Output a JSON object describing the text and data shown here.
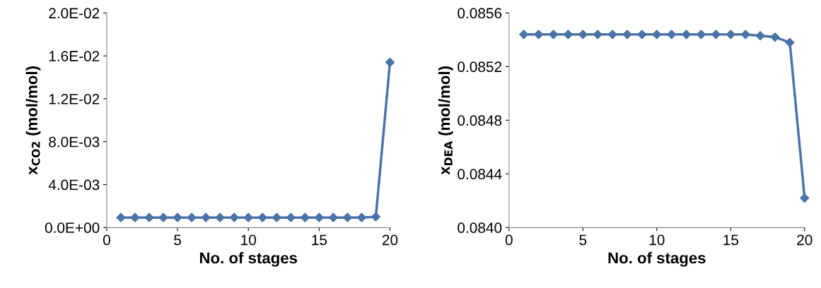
{
  "chart_data": [
    {
      "type": "line",
      "xlabel": "No. of stages",
      "ylabel": "x$_{CO2}$ (mol/mol)",
      "marker": "diamond",
      "line_style": "solid",
      "grid": false,
      "x": [
        1,
        2,
        3,
        4,
        5,
        6,
        7,
        8,
        9,
        10,
        11,
        12,
        13,
        14,
        15,
        16,
        17,
        18,
        19,
        20
      ],
      "series": [
        {
          "color": "#4a73a8",
          "values": [
            0.00093,
            0.00093,
            0.00093,
            0.00093,
            0.00093,
            0.00093,
            0.00093,
            0.00093,
            0.00093,
            0.00093,
            0.00093,
            0.00093,
            0.00093,
            0.00093,
            0.00093,
            0.00093,
            0.00093,
            0.00093,
            0.001,
            0.0154
          ]
        }
      ],
      "xlim": [
        0,
        20
      ],
      "xticks": [
        0,
        5,
        10,
        15,
        20
      ],
      "ylim": [
        0,
        0.02
      ],
      "yticks": [
        {
          "value": 0,
          "label": "0.0E+00"
        },
        {
          "value": 0.004,
          "label": "4.0E-03"
        },
        {
          "value": 0.008,
          "label": "8.0E-03"
        },
        {
          "value": 0.012,
          "label": "1.2E-02"
        },
        {
          "value": 0.016,
          "label": "1.6E-02"
        },
        {
          "value": 0.02,
          "label": "2.0E-02"
        }
      ]
    },
    {
      "type": "line",
      "xlabel": "No. of stages",
      "ylabel": "x$_{DEA}$ (mol/mol)",
      "marker": "diamond",
      "line_style": "solid",
      "grid": false,
      "x": [
        1,
        2,
        3,
        4,
        5,
        6,
        7,
        8,
        9,
        10,
        11,
        12,
        13,
        14,
        15,
        16,
        17,
        18,
        19,
        20
      ],
      "series": [
        {
          "color": "#4a73a8",
          "values": [
            0.08544,
            0.08544,
            0.08544,
            0.08544,
            0.08544,
            0.08544,
            0.08544,
            0.08544,
            0.08544,
            0.08544,
            0.08544,
            0.08544,
            0.08544,
            0.08544,
            0.08544,
            0.08544,
            0.08543,
            0.08542,
            0.08538,
            0.08422
          ]
        }
      ],
      "xlim": [
        0,
        20
      ],
      "xticks": [
        0,
        5,
        10,
        15,
        20
      ],
      "ylim": [
        0.084,
        0.0856
      ],
      "yticks": [
        {
          "value": 0.084,
          "label": "0.0840"
        },
        {
          "value": 0.0844,
          "label": "0.0844"
        },
        {
          "value": 0.0848,
          "label": "0.0848"
        },
        {
          "value": 0.0852,
          "label": "0.0852"
        },
        {
          "value": 0.0856,
          "label": "0.0856"
        }
      ]
    }
  ]
}
